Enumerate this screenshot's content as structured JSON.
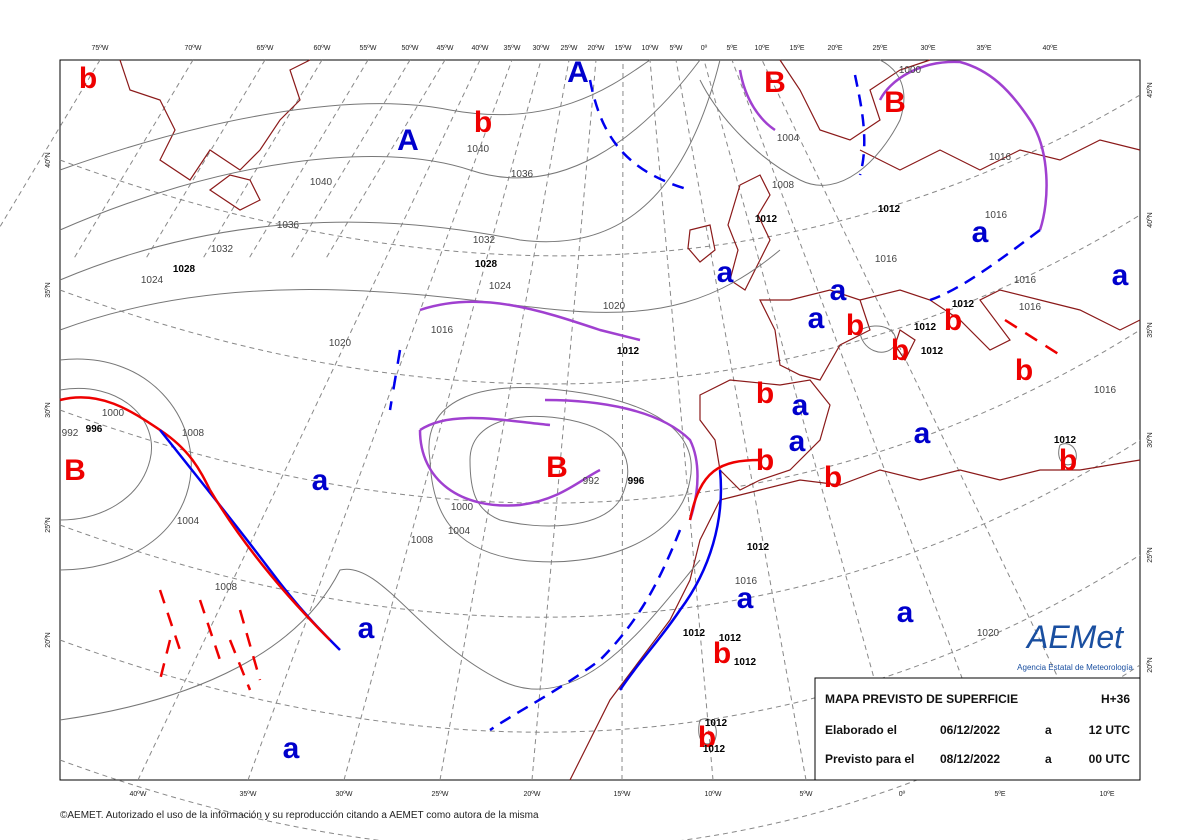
{
  "top_longitudes": [
    "75ºW",
    "70ºW",
    "65ºW",
    "60ºW",
    "55ºW",
    "50ºW",
    "45ºW",
    "40ºW",
    "35ºW",
    "30ºW",
    "25ºW",
    "20ºW",
    "15ºW",
    "10ºW",
    "5ºW",
    "0º",
    "5ºE",
    "10ºE",
    "15ºE",
    "20ºE",
    "25ºE",
    "30ºE",
    "35ºE",
    "40ºE"
  ],
  "bottom_longitudes": [
    "40ºW",
    "35ºW",
    "30ºW",
    "25ºW",
    "20ºW",
    "15ºW",
    "10ºW",
    "5ºW",
    "0º",
    "5ºE",
    "10ºE"
  ],
  "left_latitudes": [
    "40ºN",
    "35ºN",
    "30ºN",
    "25ºN",
    "20ºN"
  ],
  "right_latitudes": [
    "45ºN",
    "40ºN",
    "35ºN",
    "30ºN",
    "25ºN",
    "20ºN"
  ],
  "pressure_centers": [
    "b",
    "A",
    "b",
    "A",
    "B",
    "B",
    "a",
    "a",
    "a",
    "a",
    "a",
    "b",
    "b",
    "b",
    "b",
    "b",
    "a",
    "a",
    "a",
    "b",
    "b",
    "b",
    "B",
    "a",
    "B",
    "a",
    "a",
    "b",
    "a",
    "a",
    "b"
  ],
  "isobar_labels": [
    "1040",
    "1036",
    "1032",
    "1028",
    "1024",
    "1020",
    "1016",
    "1012",
    "1008",
    "1000",
    "996",
    "992",
    "1004",
    "1008",
    "1040",
    "1036",
    "1032",
    "1028",
    "1024",
    "1020",
    "1000",
    "1004",
    "1008",
    "992",
    "996",
    "1012",
    "1008",
    "1004",
    "1000",
    "1012",
    "1016",
    "1016",
    "1016",
    "1012",
    "1012",
    "1012",
    "1016",
    "1016",
    "1016",
    "1012",
    "1012",
    "1016",
    "1012",
    "1012",
    "1012",
    "1012",
    "1012",
    "1020"
  ],
  "info_box": {
    "title": "MAPA PREVISTO DE SUPERFICIE",
    "range": "H+36",
    "rows": [
      [
        "Elaborado el",
        "06/12/2022",
        "a",
        "12 UTC"
      ],
      [
        "Previsto para el",
        "08/12/2022",
        "a",
        "00 UTC"
      ]
    ]
  },
  "logo": {
    "name": "AEMet",
    "subtitle": "Agencia Estatal de Meteorología"
  },
  "copyright": "©AEMET. Autorizado el uso de la información y su reproducción citando a AEMET como autora de la misma"
}
